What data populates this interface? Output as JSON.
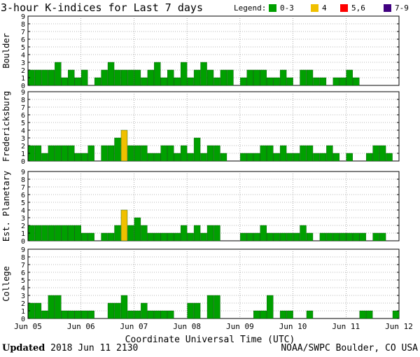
{
  "title": "3-hour K-indices for Last 7 days",
  "legend": {
    "label": "Legend:",
    "items": [
      {
        "label": "0-3",
        "color": "#00a000"
      },
      {
        "label": "4",
        "color": "#f0c000"
      },
      {
        "label": "5,6",
        "color": "#ff0000"
      },
      {
        "label": "7-9",
        "color": "#400080"
      }
    ]
  },
  "footer": {
    "updated_label": "Updated",
    "updated_value": "2018 Jun 11 2130",
    "source": "NOAA/SWPC Boulder, CO USA"
  },
  "chart_data": [
    {
      "type": "bar",
      "title": "Boulder",
      "ylabel": "Boulder",
      "ylim": [
        0,
        9
      ],
      "yticks": [
        "0",
        "1",
        "2",
        "3",
        "4",
        "5",
        "6",
        "7",
        "8",
        "9"
      ],
      "xlabel": "Coordinate Universal Time (UTC)",
      "xticks": [
        "Jun 05",
        "Jun 06",
        "Jun 07",
        "Jun 08",
        "Jun 09",
        "Jun 10",
        "Jun 11",
        "Jun 12"
      ],
      "bars_per_day": 8,
      "values": [
        2,
        2,
        2,
        2,
        3,
        1,
        2,
        1,
        2,
        0,
        1,
        2,
        3,
        2,
        2,
        2,
        2,
        1,
        2,
        3,
        1,
        2,
        1,
        3,
        1,
        2,
        3,
        2,
        1,
        2,
        2,
        0,
        1,
        2,
        2,
        2,
        1,
        1,
        2,
        1,
        0,
        2,
        2,
        1,
        1,
        0,
        1,
        1,
        2,
        1,
        0
      ]
    },
    {
      "type": "bar",
      "title": "Fredericksburg",
      "ylabel": "Fredericksburg",
      "ylim": [
        0,
        9
      ],
      "yticks": [
        "0",
        "1",
        "2",
        "3",
        "4",
        "5",
        "6",
        "7",
        "8",
        "9"
      ],
      "xlabel": "Coordinate Universal Time (UTC)",
      "xticks": [
        "Jun 05",
        "Jun 06",
        "Jun 07",
        "Jun 08",
        "Jun 09",
        "Jun 10",
        "Jun 11",
        "Jun 12"
      ],
      "bars_per_day": 8,
      "values": [
        2,
        2,
        1,
        2,
        2,
        2,
        2,
        1,
        1,
        2,
        0,
        2,
        2,
        3,
        4,
        2,
        2,
        2,
        1,
        1,
        2,
        2,
        1,
        2,
        1,
        3,
        1,
        2,
        2,
        1,
        0,
        0,
        1,
        1,
        1,
        2,
        2,
        1,
        2,
        1,
        1,
        2,
        2,
        1,
        1,
        2,
        1,
        0,
        1,
        0,
        0,
        1,
        2,
        2,
        1,
        0
      ]
    },
    {
      "type": "bar",
      "title": "Est. Planetary",
      "ylabel": "Est. Planetary",
      "ylim": [
        0,
        9
      ],
      "yticks": [
        "0",
        "1",
        "2",
        "3",
        "4",
        "5",
        "6",
        "7",
        "8",
        "9"
      ],
      "xlabel": "Coordinate Universal Time (UTC)",
      "xticks": [
        "Jun 05",
        "Jun 06",
        "Jun 07",
        "Jun 08",
        "Jun 09",
        "Jun 10",
        "Jun 11",
        "Jun 12"
      ],
      "bars_per_day": 8,
      "values": [
        2,
        2,
        2,
        2,
        2,
        2,
        2,
        2,
        1,
        1,
        0,
        1,
        1,
        2,
        4,
        2,
        3,
        2,
        1,
        1,
        1,
        1,
        1,
        2,
        1,
        2,
        1,
        2,
        2,
        0,
        0,
        0,
        1,
        1,
        1,
        2,
        1,
        1,
        1,
        1,
        1,
        2,
        1,
        0,
        1,
        1,
        1,
        1,
        1,
        1,
        1,
        0,
        1,
        1,
        0,
        0
      ]
    },
    {
      "type": "bar",
      "title": "College",
      "ylabel": "College",
      "ylim": [
        0,
        9
      ],
      "yticks": [
        "0",
        "1",
        "2",
        "3",
        "4",
        "5",
        "6",
        "7",
        "8",
        "9"
      ],
      "xlabel": "Coordinate Universal Time (UTC)",
      "xticks": [
        "Jun 05",
        "Jun 06",
        "Jun 07",
        "Jun 08",
        "Jun 09",
        "Jun 10",
        "Jun 11",
        "Jun 12"
      ],
      "bars_per_day": 8,
      "values": [
        2,
        2,
        1,
        3,
        3,
        1,
        1,
        1,
        1,
        1,
        0,
        0,
        2,
        2,
        3,
        1,
        1,
        2,
        1,
        1,
        1,
        1,
        0,
        0,
        2,
        2,
        0,
        3,
        3,
        0,
        0,
        0,
        0,
        0,
        1,
        1,
        3,
        0,
        1,
        1,
        0,
        0,
        1,
        0,
        0,
        0,
        0,
        0,
        0,
        0,
        1,
        1,
        0,
        0,
        0,
        1,
        0
      ]
    }
  ]
}
